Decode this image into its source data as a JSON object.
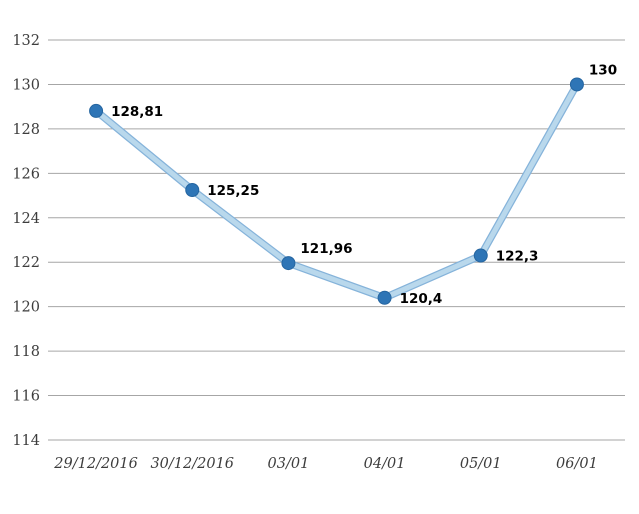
{
  "chart_data": {
    "type": "line",
    "title": "",
    "xlabel": "",
    "ylabel": "",
    "categories": [
      "29/12/2016",
      "30/12/2016",
      "03/01",
      "04/01",
      "05/01",
      "06/01"
    ],
    "series": [
      {
        "name": "series-1",
        "values": [
          128.81,
          125.25,
          121.96,
          120.4,
          122.3,
          130
        ],
        "data_labels": [
          "128,81",
          "125,25",
          "121,96",
          "120,4",
          "122,3",
          "130"
        ],
        "data_label_placement": [
          "right",
          "right",
          "above-right",
          "right",
          "right",
          "above-right"
        ]
      }
    ],
    "ylim": [
      114,
      132
    ],
    "yticks": [
      114,
      116,
      118,
      120,
      122,
      124,
      126,
      128,
      130,
      132
    ],
    "grid": true,
    "gridlines": "horizontal-major",
    "legend_position": "none",
    "colors": {
      "marker_fill": "#2e75b6",
      "marker_edge": "#2565a0",
      "line_fill": "#b9d8ec",
      "line_edge": "#85b3da",
      "gridline": "#a6a6a6",
      "tick_text": "#3d3d3d",
      "data_label_text": "#000000",
      "background": "#ffffff"
    }
  }
}
